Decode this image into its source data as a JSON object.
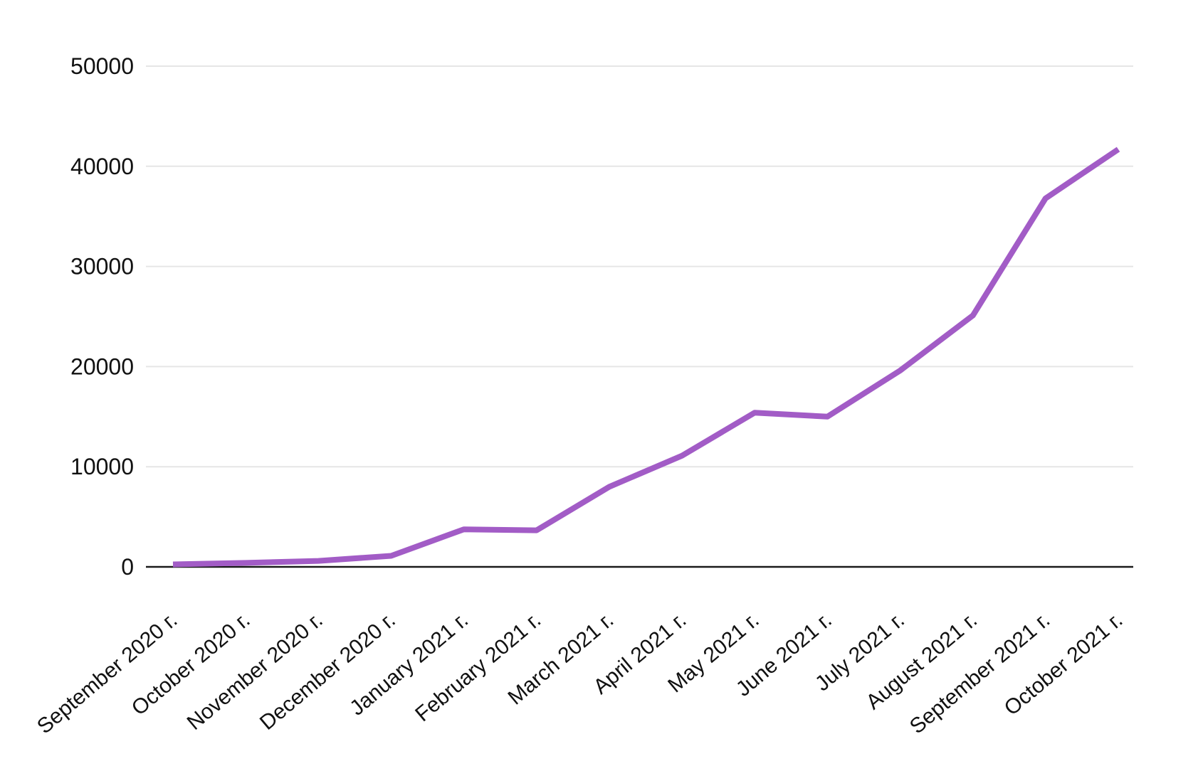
{
  "chart_data": {
    "type": "line",
    "title": "",
    "xlabel": "",
    "ylabel": "",
    "categories": [
      "September 2020 г.",
      "October 2020 г.",
      "November 2020 г.",
      "December 2020 г.",
      "January 2021 г.",
      "February 2021 г.",
      "March 2021 г.",
      "April 2021 г.",
      "May 2021 г.",
      "June 2021 г.",
      "July 2021 г.",
      "August 2021 г.",
      "September 2021 г.",
      "October 2021 г."
    ],
    "series": [
      {
        "name": "",
        "values": [
          250,
          400,
          600,
          1100,
          3750,
          3650,
          8000,
          11100,
          15400,
          15000,
          19600,
          25100,
          36800,
          41700
        ],
        "color": "#a25cc6"
      }
    ],
    "ylim": [
      0,
      50000
    ],
    "yticks": [
      0,
      10000,
      20000,
      30000,
      40000,
      50000
    ],
    "grid": "horizontal",
    "legend": "none",
    "x_label_rotation_deg": -40
  },
  "colors": {
    "background": "#ffffff",
    "line": "#a25cc6",
    "gridline": "#e6e6e6",
    "zero_axis": "#1a1a1a",
    "tick_text": "#111111"
  }
}
